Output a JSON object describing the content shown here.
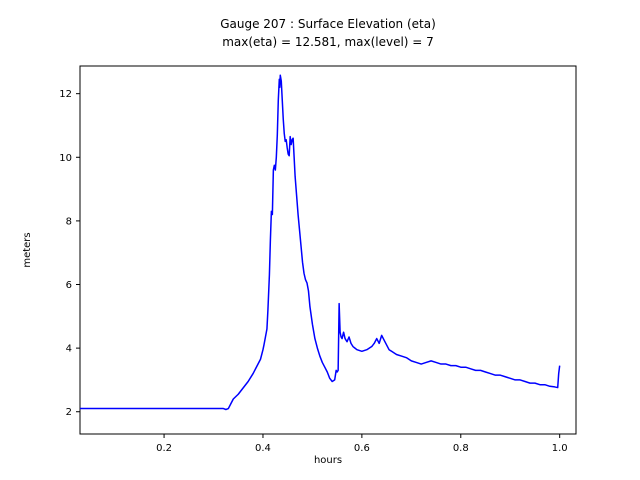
{
  "figure": {
    "title": "Gauge 207 : Surface Elevation (eta)",
    "subtitle": "max(eta) =  12.581,    max(level) = 7",
    "xlabel": "hours",
    "ylabel": "meters"
  },
  "chart_data": {
    "type": "line",
    "title": "Gauge 207 : Surface Elevation (eta)",
    "subtitle": "max(eta) =  12.581,    max(level) = 7",
    "xlabel": "hours",
    "ylabel": "meters",
    "xlim": [
      0.03,
      1.033
    ],
    "ylim": [
      1.3,
      12.87
    ],
    "xticks": [
      0.2,
      0.4,
      0.6,
      0.8,
      1.0
    ],
    "xtick_labels": [
      "0.2",
      "0.4",
      "0.6",
      "0.8",
      "1.0"
    ],
    "yticks": [
      2,
      4,
      6,
      8,
      10,
      12
    ],
    "ytick_labels": [
      "2",
      "4",
      "6",
      "8",
      "10",
      "12"
    ],
    "grid": false,
    "legend": "none",
    "line_color": "#0000ff",
    "axis_color": "#000000",
    "background_color": "#ffffff",
    "max_eta": 12.581,
    "max_level": 7,
    "series": [
      {
        "name": "eta",
        "color": "#0000ff",
        "points": [
          [
            0.03,
            2.1
          ],
          [
            0.1,
            2.1
          ],
          [
            0.2,
            2.1
          ],
          [
            0.3,
            2.1
          ],
          [
            0.32,
            2.1
          ],
          [
            0.325,
            2.07
          ],
          [
            0.33,
            2.1
          ],
          [
            0.335,
            2.25
          ],
          [
            0.34,
            2.4
          ],
          [
            0.35,
            2.55
          ],
          [
            0.36,
            2.75
          ],
          [
            0.37,
            2.95
          ],
          [
            0.38,
            3.2
          ],
          [
            0.39,
            3.5
          ],
          [
            0.395,
            3.65
          ],
          [
            0.4,
            3.95
          ],
          [
            0.402,
            4.1
          ],
          [
            0.405,
            4.35
          ],
          [
            0.408,
            4.6
          ],
          [
            0.41,
            5.2
          ],
          [
            0.413,
            6.3
          ],
          [
            0.415,
            7.4
          ],
          [
            0.417,
            8.3
          ],
          [
            0.419,
            8.2
          ],
          [
            0.421,
            9.6
          ],
          [
            0.423,
            9.75
          ],
          [
            0.425,
            9.6
          ],
          [
            0.427,
            10.0
          ],
          [
            0.429,
            10.7
          ],
          [
            0.431,
            11.8
          ],
          [
            0.433,
            12.45
          ],
          [
            0.434,
            12.2
          ],
          [
            0.435,
            12.581
          ],
          [
            0.437,
            12.4
          ],
          [
            0.439,
            11.8
          ],
          [
            0.441,
            11.2
          ],
          [
            0.443,
            10.75
          ],
          [
            0.445,
            10.5
          ],
          [
            0.447,
            10.55
          ],
          [
            0.449,
            10.3
          ],
          [
            0.451,
            10.1
          ],
          [
            0.453,
            10.05
          ],
          [
            0.455,
            10.65
          ],
          [
            0.457,
            10.4
          ],
          [
            0.459,
            10.55
          ],
          [
            0.461,
            10.6
          ],
          [
            0.463,
            10.0
          ],
          [
            0.465,
            9.4
          ],
          [
            0.468,
            8.8
          ],
          [
            0.471,
            8.2
          ],
          [
            0.474,
            7.7
          ],
          [
            0.477,
            7.2
          ],
          [
            0.48,
            6.7
          ],
          [
            0.483,
            6.35
          ],
          [
            0.486,
            6.15
          ],
          [
            0.489,
            6.05
          ],
          [
            0.492,
            5.8
          ],
          [
            0.495,
            5.3
          ],
          [
            0.5,
            4.75
          ],
          [
            0.505,
            4.3
          ],
          [
            0.51,
            4.0
          ],
          [
            0.515,
            3.75
          ],
          [
            0.52,
            3.55
          ],
          [
            0.525,
            3.4
          ],
          [
            0.53,
            3.25
          ],
          [
            0.535,
            3.05
          ],
          [
            0.54,
            2.95
          ],
          [
            0.545,
            3.0
          ],
          [
            0.548,
            3.3
          ],
          [
            0.55,
            3.25
          ],
          [
            0.552,
            3.3
          ],
          [
            0.554,
            5.4
          ],
          [
            0.556,
            4.5
          ],
          [
            0.558,
            4.35
          ],
          [
            0.56,
            4.3
          ],
          [
            0.563,
            4.5
          ],
          [
            0.566,
            4.3
          ],
          [
            0.57,
            4.2
          ],
          [
            0.574,
            4.35
          ],
          [
            0.578,
            4.15
          ],
          [
            0.582,
            4.05
          ],
          [
            0.586,
            4.0
          ],
          [
            0.59,
            3.95
          ],
          [
            0.6,
            3.9
          ],
          [
            0.61,
            3.95
          ],
          [
            0.62,
            4.05
          ],
          [
            0.625,
            4.15
          ],
          [
            0.63,
            4.3
          ],
          [
            0.635,
            4.15
          ],
          [
            0.64,
            4.4
          ],
          [
            0.645,
            4.25
          ],
          [
            0.65,
            4.1
          ],
          [
            0.655,
            3.95
          ],
          [
            0.66,
            3.9
          ],
          [
            0.67,
            3.8
          ],
          [
            0.68,
            3.75
          ],
          [
            0.69,
            3.7
          ],
          [
            0.7,
            3.6
          ],
          [
            0.71,
            3.55
          ],
          [
            0.72,
            3.5
          ],
          [
            0.73,
            3.55
          ],
          [
            0.74,
            3.6
          ],
          [
            0.75,
            3.55
          ],
          [
            0.76,
            3.5
          ],
          [
            0.77,
            3.5
          ],
          [
            0.78,
            3.45
          ],
          [
            0.79,
            3.45
          ],
          [
            0.8,
            3.4
          ],
          [
            0.81,
            3.4
          ],
          [
            0.82,
            3.35
          ],
          [
            0.83,
            3.3
          ],
          [
            0.84,
            3.3
          ],
          [
            0.85,
            3.25
          ],
          [
            0.86,
            3.2
          ],
          [
            0.87,
            3.15
          ],
          [
            0.88,
            3.15
          ],
          [
            0.89,
            3.1
          ],
          [
            0.9,
            3.05
          ],
          [
            0.91,
            3.0
          ],
          [
            0.92,
            3.0
          ],
          [
            0.93,
            2.95
          ],
          [
            0.94,
            2.9
          ],
          [
            0.95,
            2.9
          ],
          [
            0.96,
            2.85
          ],
          [
            0.97,
            2.85
          ],
          [
            0.98,
            2.8
          ],
          [
            0.99,
            2.78
          ],
          [
            0.996,
            2.76
          ],
          [
            0.998,
            3.2
          ],
          [
            1.0,
            3.45
          ]
        ]
      }
    ]
  }
}
